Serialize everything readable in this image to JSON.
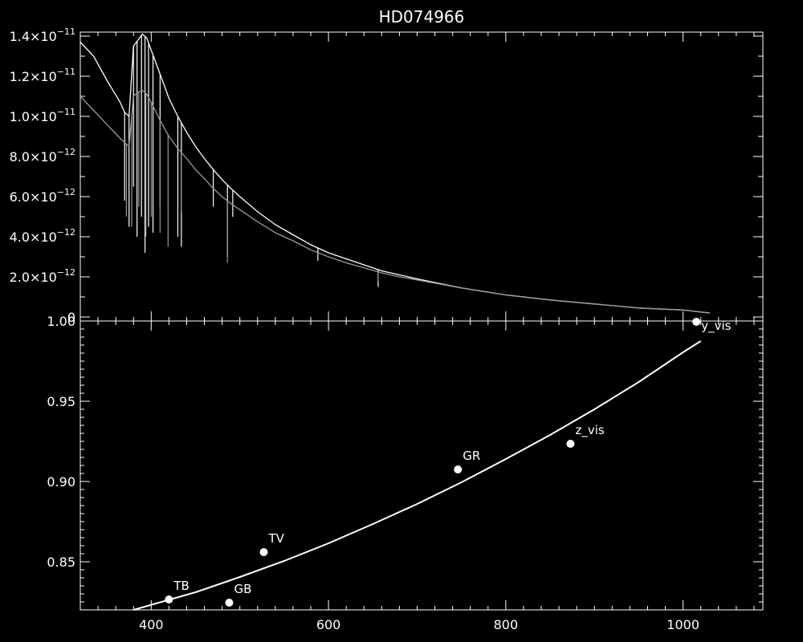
{
  "chart_data": [
    {
      "type": "line",
      "title": "HD074966",
      "xlabel": "",
      "ylabel": "",
      "xlim": [
        320,
        1090
      ],
      "ylim": [
        -2e-13,
        1.42e-11
      ],
      "yticks": [
        {
          "value": 1.4e-11,
          "mant": "1.4",
          "exp": "-11"
        },
        {
          "value": 1.2e-11,
          "mant": "1.2",
          "exp": "-11"
        },
        {
          "value": 1e-11,
          "mant": "1.0",
          "exp": "-11"
        },
        {
          "value": 8e-12,
          "mant": "8.0",
          "exp": "-12"
        },
        {
          "value": 6e-12,
          "mant": "6.0",
          "exp": "-12"
        },
        {
          "value": 4e-12,
          "mant": "4.0",
          "exp": "-12"
        },
        {
          "value": 2e-12,
          "mant": "2.0",
          "exp": "-12"
        },
        {
          "value": 0,
          "mant": "0",
          "exp": ""
        }
      ],
      "series": [
        {
          "color": "#ffffff",
          "x": [
            320,
            335,
            350,
            365,
            370,
            375,
            380,
            385,
            390,
            395,
            400,
            410,
            420,
            430,
            440,
            450,
            460,
            470,
            480,
            490,
            500,
            520,
            540,
            560,
            580,
            600,
            620,
            640,
            660,
            680,
            700,
            750,
            800,
            850,
            900,
            950,
            1000,
            1010,
            1020,
            1030
          ],
          "y": [
            1.37e-11,
            1.3e-11,
            1.18e-11,
            1.07e-11,
            1.02e-11,
            1e-11,
            1.35e-11,
            1.38e-11,
            1.41e-11,
            1.39e-11,
            1.33e-11,
            1.21e-11,
            1.09e-11,
            1e-11,
            9.2e-12,
            8.5e-12,
            7.9e-12,
            7.35e-12,
            6.85e-12,
            6.4e-12,
            6e-12,
            5.25e-12,
            4.6e-12,
            4.1e-12,
            3.6e-12,
            3.2e-12,
            2.9e-12,
            2.6e-12,
            2.3e-12,
            2.1e-12,
            1.9e-12,
            1.45e-12,
            1.1e-12,
            8.5e-13,
            6.5e-13,
            4.5e-13,
            3.5e-13,
            3e-13,
            2.5e-13,
            2e-13
          ],
          "dips": [
            {
              "x": 370,
              "y": 5.8e-12
            },
            {
              "x": 375,
              "y": 4.5e-12
            },
            {
              "x": 380,
              "y": 6.5e-12
            },
            {
              "x": 384,
              "y": 4e-12
            },
            {
              "x": 389,
              "y": 5e-12
            },
            {
              "x": 393,
              "y": 3.2e-12
            },
            {
              "x": 397,
              "y": 4.5e-12
            },
            {
              "x": 402,
              "y": 4.2e-12
            },
            {
              "x": 410,
              "y": 5.5e-12
            },
            {
              "x": 430,
              "y": 4e-12
            },
            {
              "x": 434,
              "y": 3.5e-12
            },
            {
              "x": 470,
              "y": 5.5e-12
            },
            {
              "x": 486,
              "y": 3e-12
            },
            {
              "x": 492,
              "y": 5e-12
            },
            {
              "x": 588,
              "y": 2.8e-12
            },
            {
              "x": 656,
              "y": 1.5e-12
            }
          ]
        },
        {
          "color": "#999999",
          "x": [
            320,
            335,
            350,
            365,
            370,
            375,
            380,
            385,
            390,
            395,
            400,
            410,
            420,
            430,
            440,
            450,
            460,
            470,
            480,
            490,
            500,
            520,
            540,
            560,
            580,
            600,
            620,
            640,
            660,
            680,
            700,
            750,
            800,
            850,
            900,
            950,
            1000,
            1010,
            1020,
            1030
          ],
          "y": [
            1.1e-11,
            1.03e-11,
            9.6e-12,
            8.9e-12,
            8.7e-12,
            8.5e-12,
            1.1e-11,
            1.12e-11,
            1.13e-11,
            1.11e-11,
            1.07e-11,
            9.8e-12,
            9e-12,
            8.4e-12,
            7.9e-12,
            7.35e-12,
            6.9e-12,
            6.4e-12,
            6e-12,
            5.65e-12,
            5.35e-12,
            4.75e-12,
            4.2e-12,
            3.8e-12,
            3.35e-12,
            3e-12,
            2.7e-12,
            2.45e-12,
            2.2e-12,
            2e-12,
            1.85e-12,
            1.45e-12,
            1.1e-12,
            8.5e-13,
            6.5e-13,
            4.5e-13,
            3.5e-13,
            3e-13,
            2.5e-13,
            2e-13
          ],
          "dips": [
            {
              "x": 372,
              "y": 5e-12
            },
            {
              "x": 378,
              "y": 4.5e-12
            },
            {
              "x": 386,
              "y": 5.5e-12
            },
            {
              "x": 394,
              "y": 4e-12
            },
            {
              "x": 400,
              "y": 5e-12
            },
            {
              "x": 410,
              "y": 4.2e-12
            },
            {
              "x": 419,
              "y": 3.5e-12
            },
            {
              "x": 434,
              "y": 5.2e-12
            },
            {
              "x": 486,
              "y": 2.7e-12
            },
            {
              "x": 656,
              "y": 1.8e-12
            }
          ]
        }
      ]
    },
    {
      "type": "scatter",
      "xlabel": "",
      "ylabel": "",
      "xlim": [
        320,
        1090
      ],
      "ylim": [
        0.82,
        1.0
      ],
      "xticks": [
        400,
        600,
        800,
        1000
      ],
      "yticks": [
        {
          "value": 1.0,
          "label": "1.00"
        },
        {
          "value": 0.95,
          "label": "0.95"
        },
        {
          "value": 0.9,
          "label": "0.90"
        },
        {
          "value": 0.85,
          "label": "0.85"
        }
      ],
      "points": [
        {
          "label": "TB",
          "x": 420,
          "y": 0.8265
        },
        {
          "label": "GB",
          "x": 488,
          "y": 0.8245
        },
        {
          "label": "TV",
          "x": 527,
          "y": 0.856
        },
        {
          "label": "GR",
          "x": 746,
          "y": 0.9075
        },
        {
          "label": "z_vis",
          "x": 873,
          "y": 0.9235
        },
        {
          "label": "y_vis",
          "x": 1015,
          "y": 0.9995
        }
      ],
      "fit_line": {
        "x": [
          380,
          450,
          500,
          550,
          600,
          650,
          700,
          750,
          800,
          850,
          900,
          950,
          1000,
          1020
        ],
        "y": [
          0.82,
          0.831,
          0.8405,
          0.8505,
          0.8615,
          0.8735,
          0.886,
          0.8995,
          0.914,
          0.929,
          0.945,
          0.962,
          0.9805,
          0.9875
        ]
      }
    }
  ]
}
